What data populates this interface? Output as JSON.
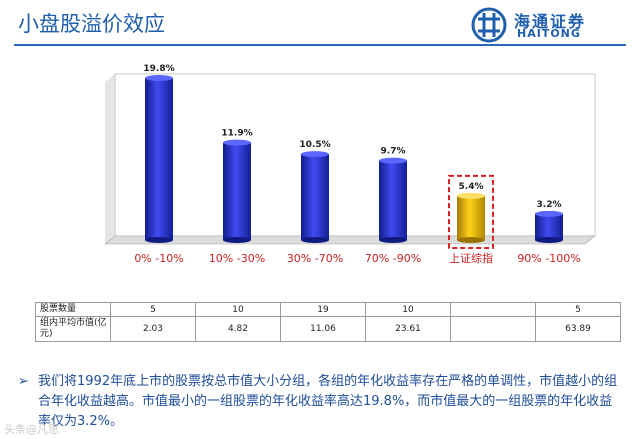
{
  "slide": {
    "title": "小盘股溢价效应",
    "logo": {
      "cn": "海通证券",
      "en": "HAITONG"
    },
    "bullet": "我们将1992年底上市的股票按总市值大小分组，各组的年化收益率存在严格的单调性，市值越小的组合年化收益越高。市值最小的一组股票的年化收益率高达19.8%，而市值最大的一组股票的年化收益率仅为3.2%。",
    "watermark": "头条@凡思"
  },
  "table": {
    "rows": [
      {
        "header": "股票数量",
        "cells": [
          "5",
          "10",
          "19",
          "10",
          "",
          "5"
        ]
      },
      {
        "header": "组内平均市值(亿元)",
        "cells": [
          "2.03",
          "4.82",
          "11.06",
          "23.61",
          "",
          "63.89"
        ]
      }
    ]
  },
  "chart_data": {
    "type": "bar",
    "categories": [
      "0% -10%",
      "10% -30%",
      "30% -70%",
      "70% -90%",
      "上证综指",
      "90% -100%"
    ],
    "values": [
      19.8,
      11.9,
      10.5,
      9.7,
      5.4,
      3.2
    ],
    "value_labels": [
      "19.8%",
      "11.9%",
      "10.5%",
      "9.7%",
      "5.4%",
      "3.2%"
    ],
    "ylim": [
      0,
      22
    ],
    "highlight_index": 4,
    "colors": {
      "bar": "#2b36d8",
      "highlight": "#f2b900",
      "highlight_border": "#e02020",
      "category_label": "#cc2222"
    }
  }
}
